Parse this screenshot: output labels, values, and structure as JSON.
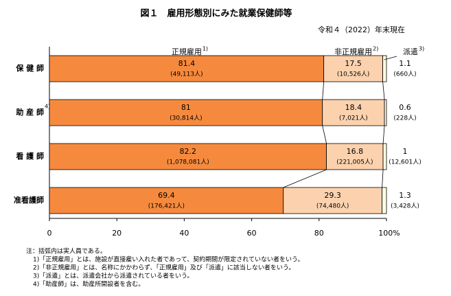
{
  "chart_data": {
    "type": "stacked-barh",
    "title": "図１　雇用形態別にみた就業保健師等",
    "subtitle": "令和４（2022）年末現在",
    "categories": [
      "保 健 師",
      "助 産 師",
      "看 護 師",
      "准看護師"
    ],
    "category_notes": [
      null,
      "4)",
      null,
      null
    ],
    "series": [
      {
        "name": "正規雇用",
        "note": "1)",
        "color": "#F58A3E",
        "values": [
          81.4,
          81.0,
          82.2,
          69.4
        ],
        "counts": [
          "(49,113人)",
          "(30,814人)",
          "(1,078,081人)",
          "(176,421人)"
        ]
      },
      {
        "name": "非正規雇用",
        "note": "2)",
        "color": "#FCD2AE",
        "values": [
          17.5,
          18.4,
          16.8,
          29.3
        ],
        "counts": [
          "(10,526人)",
          "(7,021人)",
          "(221,005人)",
          "(74,480人)"
        ]
      },
      {
        "name": "派遣",
        "note": "3)",
        "color": "#FFFFE3",
        "values": [
          1.1,
          0.6,
          1.0,
          1.3
        ],
        "counts": [
          "(660人)",
          "(228人)",
          "(12,601人)",
          "(3,428人)"
        ]
      }
    ],
    "xlim": [
      0,
      100
    ],
    "xticks": [
      0,
      20,
      40,
      60,
      80,
      {
        "value": 100,
        "label": "100%"
      }
    ],
    "notes": [
      "注：括弧内は実人員である。",
      "1)「正規雇用」とは、施設が直接雇い入れた者であって、契約期間が限定されていない者をいう。",
      "2)「非正規雇用」とは、名称にかかわらず、「正規雇用」及び「派遣」に該当しない者をいう。",
      "3)「派遣」とは、派遣会社から派遣されている者をいう。",
      "4)「助産師」は、助産所開設者を含む。"
    ]
  }
}
